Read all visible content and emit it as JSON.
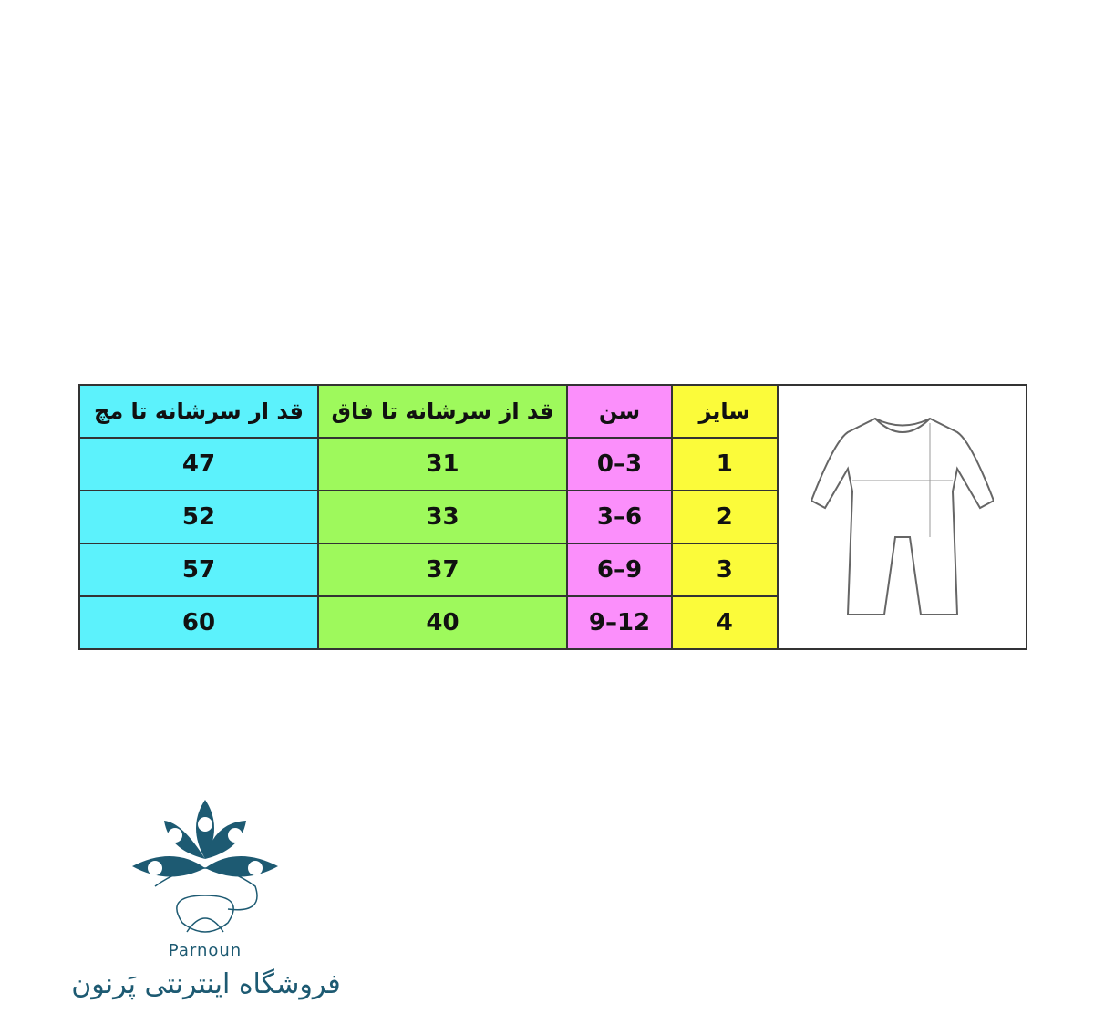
{
  "table": {
    "headers": [
      "قد ار سرشانه تا مچ",
      "قد از سرشانه تا فاق",
      "سن",
      "سایز"
    ],
    "rows": [
      [
        "47",
        "31",
        "0–3",
        "1"
      ],
      [
        "52",
        "33",
        "3–6",
        "2"
      ],
      [
        "57",
        "37",
        "6–9",
        "3"
      ],
      [
        "60",
        "40",
        "9–12",
        "4"
      ]
    ]
  },
  "colors": {
    "col_sleeve": "#5cf2fc",
    "col_crotch": "#9ef95c",
    "col_age": "#fb8ffb",
    "col_size": "#fbfb3a",
    "brand": "#1d5a72"
  },
  "logo": {
    "latin": "Parnoun",
    "persian_mark": "پرنون"
  },
  "store_name": "فروشگاه اینترنتی پَرنون"
}
